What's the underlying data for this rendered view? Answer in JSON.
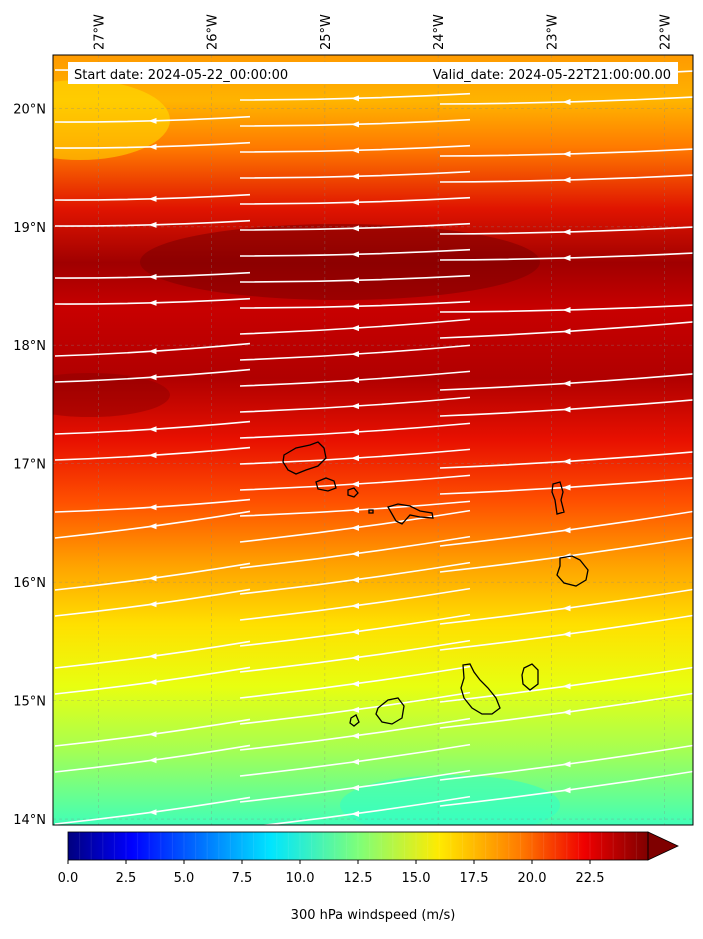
{
  "map": {
    "lon_labels": [
      "27°W",
      "26°W",
      "25°W",
      "24°W",
      "23°W",
      "22°W"
    ],
    "lat_labels": [
      "20°N",
      "19°N",
      "18°N",
      "17°N",
      "16°N",
      "15°N",
      "14°N"
    ],
    "extent": {
      "lon_min": -27.4,
      "lon_max": -21.75,
      "lat_min": 13.95,
      "lat_max": 20.45
    },
    "start_date": "Start date: 2024-05-22_00:00:00",
    "valid_date": "Valid_date: 2024-05-22T21:00:00.00",
    "field": "300 hPa windspeed",
    "field_units": "m/s",
    "speed_bands": [
      {
        "lat_min": 19.6,
        "lat_max": 20.45,
        "speed_ms": 18.5
      },
      {
        "lat_min": 19.2,
        "lat_max": 19.6,
        "speed_ms": 21
      },
      {
        "lat_min": 18.0,
        "lat_max": 19.2,
        "speed_ms": 24
      },
      {
        "lat_min": 17.2,
        "lat_max": 18.0,
        "speed_ms": 23
      },
      {
        "lat_min": 16.5,
        "lat_max": 17.2,
        "speed_ms": 21.5
      },
      {
        "lat_min": 16.0,
        "lat_max": 16.5,
        "speed_ms": 19.5
      },
      {
        "lat_min": 15.3,
        "lat_max": 16.0,
        "speed_ms": 17
      },
      {
        "lat_min": 14.7,
        "lat_max": 15.3,
        "speed_ms": 15
      },
      {
        "lat_min": 14.3,
        "lat_max": 14.7,
        "speed_ms": 13.5
      },
      {
        "lat_min": 13.95,
        "lat_max": 14.3,
        "speed_ms": 12
      }
    ],
    "wind_direction": "easterly (flow toward the west-southwest / west)",
    "islands": [
      {
        "name_hidden": true,
        "lon": -25.0,
        "lat": 17.05
      },
      {
        "name_hidden": true,
        "lon": -24.9,
        "lat": 16.85
      },
      {
        "name_hidden": true,
        "lon": -24.65,
        "lat": 16.75
      },
      {
        "name_hidden": true,
        "lon": -24.3,
        "lat": 16.6
      },
      {
        "name_hidden": true,
        "lon": -22.95,
        "lat": 16.7
      },
      {
        "name_hidden": true,
        "lon": -22.9,
        "lat": 16.1
      },
      {
        "name_hidden": true,
        "lon": -23.5,
        "lat": 15.1
      },
      {
        "name_hidden": true,
        "lon": -23.15,
        "lat": 15.2
      },
      {
        "name_hidden": true,
        "lon": -24.4,
        "lat": 14.9
      },
      {
        "name_hidden": true,
        "lon": -24.7,
        "lat": 14.85
      }
    ]
  },
  "colorbar": {
    "label": "300 hPa windspeed (m/s)",
    "ticks": [
      "0.0",
      "2.5",
      "5.0",
      "7.5",
      "10.0",
      "12.5",
      "15.0",
      "17.5",
      "20.0",
      "22.5"
    ],
    "min": 0,
    "max": 25,
    "extend": "max"
  }
}
